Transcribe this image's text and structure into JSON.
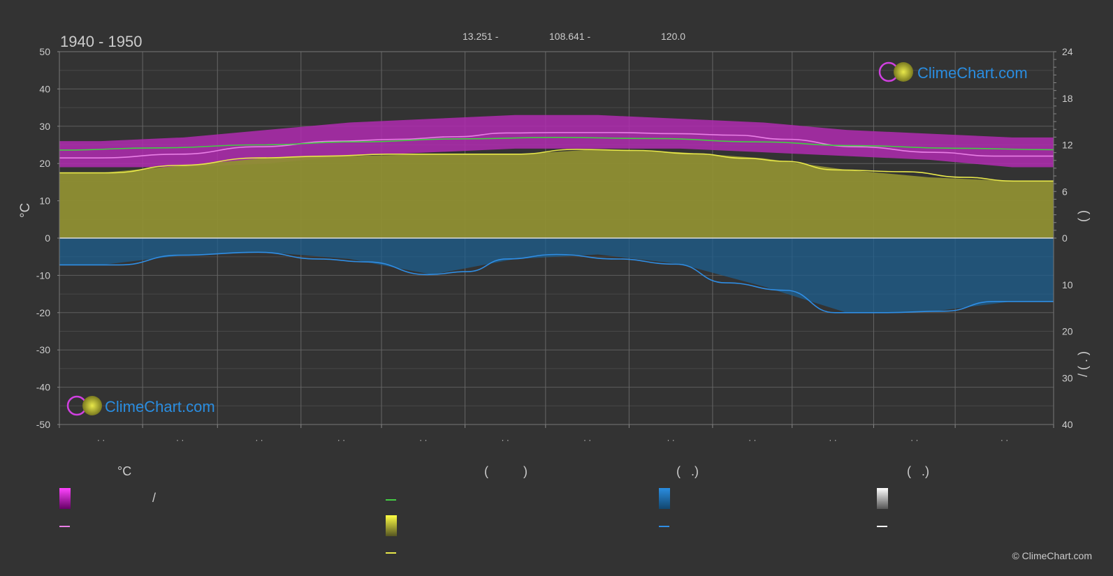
{
  "chart_data": {
    "type": "area",
    "title": "1940 - 1950",
    "header": [
      "13.251 -",
      "108.641 -",
      "120.0"
    ],
    "ylabel_left": "°C",
    "ylabel_right_top": "(   )",
    "ylabel_right_bottom": "/     (   .   )",
    "ylim_left": [
      -50,
      50
    ],
    "yticks_left": [
      "50",
      "40",
      "30",
      "20",
      "10",
      "0",
      "-10",
      "-20",
      "-30",
      "-40",
      "-50"
    ],
    "yticks_right_top": [
      "24",
      "18",
      "12",
      "6",
      "0"
    ],
    "yticks_right_bottom": [
      "10",
      "20",
      "30",
      "40"
    ],
    "month_ticks": [
      "· ·",
      "· ·",
      "· ·",
      "· ·",
      "· ·",
      "· ·",
      "· ·",
      "· ·",
      "· ·",
      "· ·",
      "· ·",
      "· ·"
    ],
    "series": [
      {
        "key": "max_temp_line",
        "color": "#e97fe6",
        "x": [
          0,
          0.04,
          0.12,
          0.2,
          0.28,
          0.34,
          0.4,
          0.45,
          0.5,
          0.56,
          0.62,
          0.68,
          0.73,
          0.8,
          0.88,
          0.94,
          1
        ],
        "values": [
          21.5,
          21.5,
          22.5,
          24.5,
          26,
          26.5,
          27.2,
          28.2,
          28.3,
          28.3,
          28,
          27.6,
          26.5,
          24.5,
          23,
          22,
          22
        ]
      },
      {
        "key": "daylight_line",
        "color": "#44cc44",
        "x": [
          0,
          0.1,
          0.2,
          0.3,
          0.4,
          0.5,
          0.6,
          0.7,
          0.8,
          0.9,
          1
        ],
        "values": [
          23.6,
          24.2,
          25,
          25.8,
          26.6,
          27,
          26.7,
          25.8,
          24.8,
          24.1,
          23.7
        ]
      },
      {
        "key": "sunshine_line",
        "color": "#e8e84a",
        "x": [
          0,
          0.05,
          0.12,
          0.2,
          0.27,
          0.33,
          0.4,
          0.46,
          0.52,
          0.58,
          0.64,
          0.69,
          0.73,
          0.78,
          0.85,
          0.91,
          0.96,
          1
        ],
        "values": [
          17.5,
          17.5,
          19.5,
          21.5,
          22,
          22.5,
          22.5,
          22.5,
          23.8,
          23.5,
          22.6,
          21.4,
          20.6,
          18.3,
          17.8,
          16.3,
          15.3,
          15.3
        ]
      },
      {
        "key": "precip_line",
        "color": "#2f8ee5",
        "x": [
          0,
          0.06,
          0.12,
          0.2,
          0.26,
          0.31,
          0.37,
          0.41,
          0.45,
          0.5,
          0.56,
          0.62,
          0.67,
          0.73,
          0.78,
          0.83,
          0.89,
          0.94,
          1
        ],
        "values": [
          -7.2,
          -7.2,
          -4.6,
          -3.8,
          -5.6,
          -6.4,
          -9.8,
          -9,
          -5.6,
          -4.4,
          -5.6,
          -7,
          -12,
          -14,
          -20,
          -20,
          -19.6,
          -17,
          -17
        ]
      }
    ],
    "bands": [
      {
        "key": "max_band",
        "color": "#d93cd8",
        "values_top": [
          26,
          27,
          29,
          31,
          32,
          33,
          33,
          32,
          31,
          29,
          28,
          27
        ],
        "values_bottom": [
          19,
          19,
          20,
          22,
          23,
          24,
          24,
          24,
          23,
          22,
          21,
          19
        ]
      },
      {
        "key": "sunshine_band",
        "color": "#a8a83a",
        "values_top": [
          17.5,
          19.5,
          21.5,
          22,
          22.5,
          22.5,
          23.8,
          23,
          21.4,
          18.3,
          16.3,
          15.3
        ],
        "values_bottom": [
          0,
          0,
          0,
          0,
          0,
          0,
          0,
          0,
          0,
          0,
          0,
          0
        ]
      },
      {
        "key": "precip_band",
        "color": "#1f6aa0",
        "values_top": [
          0,
          0,
          0,
          0,
          0,
          0,
          0,
          0,
          0,
          0,
          0,
          0
        ],
        "values_bottom": [
          -7.2,
          -4.6,
          -3.8,
          -5.6,
          -9.8,
          -5.6,
          -4.4,
          -7,
          -13,
          -20,
          -19.8,
          -17
        ]
      }
    ],
    "grid": true
  },
  "watermark": "ClimeChart.com",
  "legend": {
    "col1_header": "°C",
    "col1_row1_text": "/",
    "col2_header": "(          )",
    "col3_header": "(   .)",
    "col4_header": "(   .)"
  },
  "copyright": "© ClimeChart.com",
  "colors": {
    "background": "#333333",
    "grid": "#5c5c5c",
    "magenta": "#e020e0",
    "green": "#44cc44",
    "yellow": "#e8e84a",
    "blue": "#2f8ee5",
    "white": "#ffffff"
  }
}
